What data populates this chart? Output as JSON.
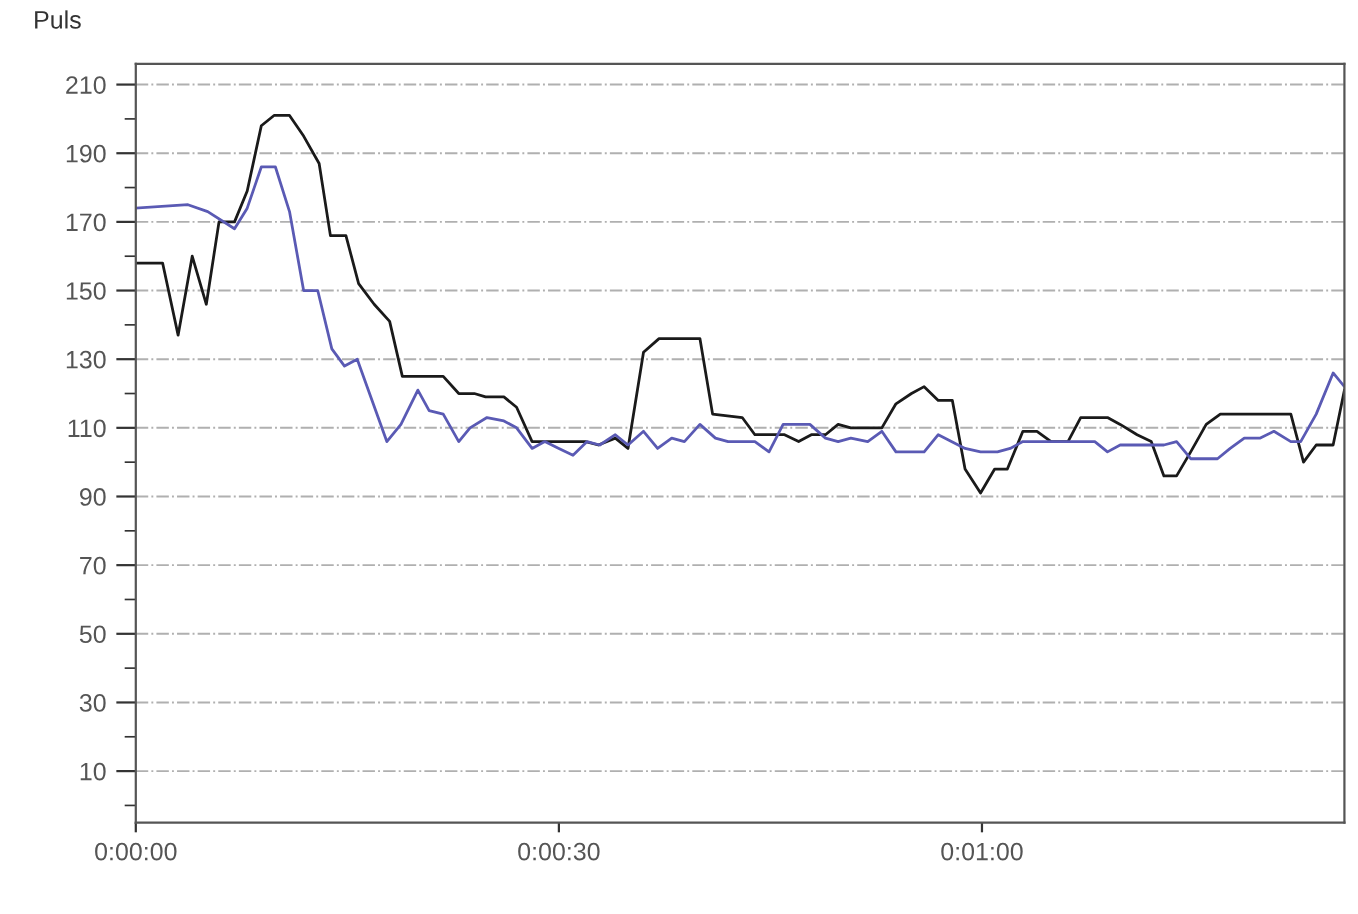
{
  "chart_data": {
    "type": "line",
    "ylabel": "Puls",
    "xlim": [
      0,
      85.7
    ],
    "xticks": [
      {
        "value": 0,
        "label": "0:00:00"
      },
      {
        "value": 30,
        "label": "0:00:30"
      },
      {
        "value": 60,
        "label": "0:01:00"
      }
    ],
    "ylim": [
      -5,
      216
    ],
    "yticks": [
      {
        "value": 0,
        "label": null
      },
      10,
      {
        "value": 20,
        "label": null
      },
      30,
      {
        "value": 40,
        "label": null
      },
      50,
      {
        "value": 60,
        "label": null
      },
      70,
      {
        "value": 80,
        "label": null
      },
      90,
      {
        "value": 100,
        "label": null
      },
      110,
      {
        "value": 120,
        "label": null
      },
      130,
      {
        "value": 140,
        "label": null
      },
      150,
      {
        "value": 160,
        "label": null
      },
      170,
      {
        "value": 180,
        "label": null
      },
      190,
      {
        "value": 200,
        "label": null
      },
      210
    ],
    "grid": "y",
    "line_style": "solid",
    "marker": "none",
    "series": [
      {
        "color": "#1a1a1a",
        "x": [
          0,
          1.9,
          3.0,
          4.0,
          5.0,
          5.9,
          7.0,
          7.9,
          8.9,
          9.8,
          10.9,
          11.9,
          13.0,
          13.8,
          14.9,
          15.8,
          16.9,
          18.0,
          18.9,
          21.8,
          22.9,
          24.0,
          24.8,
          26.1,
          27.0,
          28.1,
          29.0,
          31.9,
          32.8,
          34.0,
          34.9,
          36.0,
          37.1,
          40.0,
          40.9,
          43.0,
          43.9,
          46.0,
          47.0,
          47.9,
          48.9,
          49.8,
          50.7,
          52.9,
          53.9,
          55.0,
          55.9,
          56.9,
          57.9,
          58.8,
          59.9,
          60.9,
          61.8,
          62.9,
          63.9,
          64.9,
          66.1,
          67.0,
          68.9,
          69.8,
          71.0,
          72.0,
          72.9,
          73.8,
          74.8,
          75.9,
          76.9,
          81.9,
          82.8,
          83.7,
          84.9,
          85.7
        ],
        "values": [
          158,
          158,
          137,
          160,
          146,
          170,
          170,
          179,
          198,
          201,
          201,
          195,
          187,
          166,
          166,
          152,
          146,
          141,
          125,
          125,
          120,
          120,
          119,
          119,
          116,
          106,
          106,
          106,
          105,
          107,
          104,
          132,
          136,
          136,
          114,
          113,
          108,
          108,
          106,
          108,
          108,
          111,
          110,
          110,
          117,
          120,
          122,
          118,
          118,
          98,
          91,
          98,
          98,
          109,
          109,
          106,
          106,
          113,
          113,
          111,
          108,
          106,
          96,
          96,
          103,
          111,
          114,
          114,
          100,
          105,
          105,
          121
        ]
      },
      {
        "color": "#5a5ab4",
        "x": [
          0,
          3.7,
          5.1,
          7.0,
          7.9,
          8.9,
          9.9,
          10.9,
          11.9,
          12.9,
          13.9,
          14.8,
          15.7,
          17.8,
          18.8,
          20.0,
          20.8,
          21.8,
          22.9,
          23.7,
          24.9,
          26.1,
          27.0,
          28.1,
          29.0,
          30.0,
          31.0,
          32.0,
          32.9,
          34.0,
          34.9,
          36.0,
          37.0,
          38.0,
          38.9,
          40.0,
          41.1,
          42.0,
          43.9,
          44.9,
          45.9,
          47.8,
          48.9,
          49.8,
          50.7,
          51.9,
          52.9,
          53.9,
          55.9,
          56.9,
          58.8,
          59.9,
          61.1,
          62.0,
          62.9,
          68.0,
          68.9,
          69.8,
          72.9,
          73.8,
          74.8,
          76.7,
          77.6,
          78.6,
          79.7,
          80.7,
          81.9,
          82.6,
          83.7,
          84.9,
          85.7
        ],
        "values": [
          174,
          175,
          173,
          168,
          174,
          186,
          186,
          173,
          150,
          150,
          133,
          128,
          130,
          106,
          111,
          121,
          115,
          114,
          106,
          110,
          113,
          112,
          110,
          104,
          106,
          104,
          102,
          106,
          105,
          108,
          105,
          109,
          104,
          107,
          106,
          111,
          107,
          106,
          106,
          103,
          111,
          111,
          107,
          106,
          107,
          106,
          109,
          103,
          103,
          108,
          104,
          103,
          103,
          104,
          106,
          106,
          103,
          105,
          105,
          106,
          101,
          101,
          104,
          107,
          107,
          109,
          106,
          106,
          114,
          126,
          122
        ]
      }
    ]
  }
}
